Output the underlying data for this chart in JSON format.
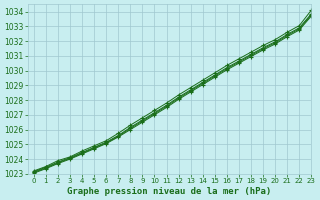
{
  "title": "Graphe pression niveau de la mer (hPa)",
  "bg_color": "#c8eef0",
  "grid_color": "#a0c8d0",
  "line_color": "#1a6e1a",
  "marker_color": "#1a6e1a",
  "xlim": [
    -0.5,
    23
  ],
  "ylim": [
    1023,
    1034.5
  ],
  "yticks": [
    1023,
    1024,
    1025,
    1026,
    1027,
    1028,
    1029,
    1030,
    1031,
    1032,
    1033,
    1034
  ],
  "xticks": [
    0,
    1,
    2,
    3,
    4,
    5,
    6,
    7,
    8,
    9,
    10,
    11,
    12,
    13,
    14,
    15,
    16,
    17,
    18,
    19,
    20,
    21,
    22,
    23
  ],
  "line1": [
    1023.2,
    1023.5,
    1023.9,
    1024.15,
    1024.55,
    1024.9,
    1025.25,
    1025.75,
    1026.3,
    1026.8,
    1027.3,
    1027.8,
    1028.35,
    1028.85,
    1029.35,
    1029.85,
    1030.35,
    1030.8,
    1031.25,
    1031.7,
    1032.1,
    1032.6,
    1033.05,
    1034.1
  ],
  "line2": [
    1023.15,
    1023.45,
    1023.8,
    1024.1,
    1024.45,
    1024.8,
    1025.15,
    1025.6,
    1026.15,
    1026.65,
    1027.15,
    1027.65,
    1028.2,
    1028.7,
    1029.2,
    1029.7,
    1030.2,
    1030.65,
    1031.1,
    1031.55,
    1031.95,
    1032.45,
    1032.9,
    1033.85
  ],
  "line3": [
    1023.05,
    1023.35,
    1023.7,
    1024.0,
    1024.35,
    1024.7,
    1025.05,
    1025.5,
    1026.0,
    1026.5,
    1027.0,
    1027.5,
    1028.05,
    1028.55,
    1029.05,
    1029.55,
    1030.05,
    1030.5,
    1030.95,
    1031.4,
    1031.8,
    1032.3,
    1032.75,
    1033.7
  ],
  "line4": [
    1023.1,
    1023.4,
    1023.75,
    1024.05,
    1024.4,
    1024.75,
    1025.1,
    1025.55,
    1026.08,
    1026.58,
    1027.08,
    1027.58,
    1028.13,
    1028.63,
    1029.13,
    1029.63,
    1030.13,
    1030.58,
    1031.03,
    1031.48,
    1031.88,
    1032.38,
    1032.83,
    1033.78
  ],
  "figsize": [
    3.2,
    2.0
  ],
  "dpi": 100,
  "ylabel_fontsize": 5.5,
  "xlabel_fontsize": 5.5,
  "title_fontsize": 6.5
}
